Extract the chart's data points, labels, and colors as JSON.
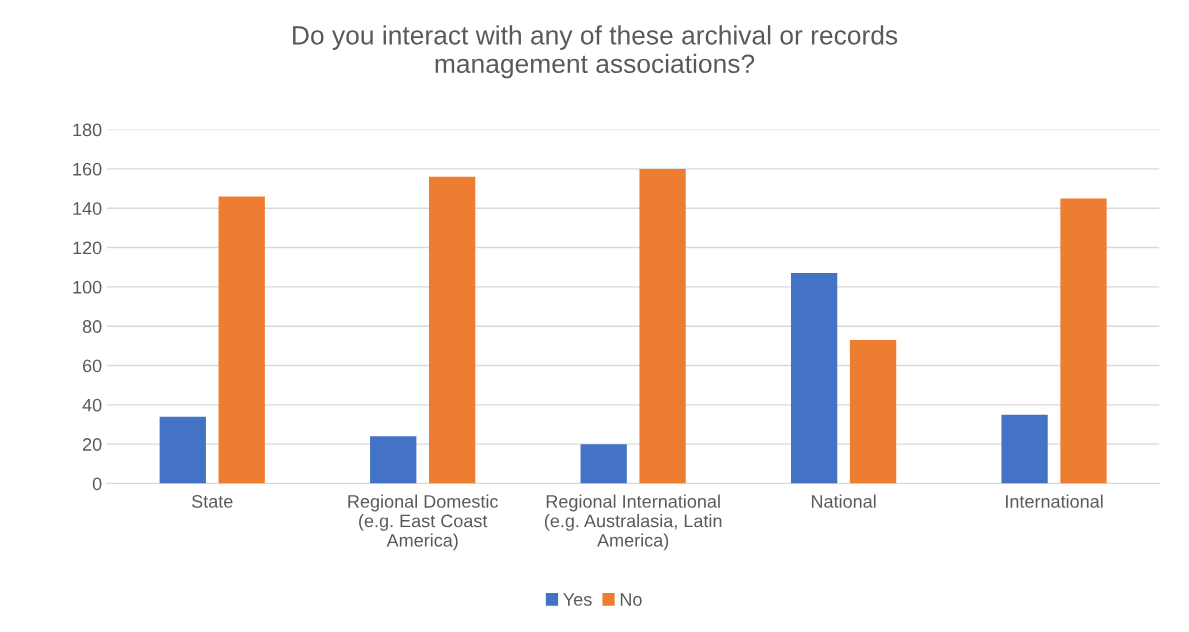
{
  "chart_data": {
    "type": "bar",
    "title": "Do you interact with any of these archival or records\nmanagement associations?",
    "categories": [
      "State",
      "Regional Domestic\n(e.g. East Coast\nAmerica)",
      "Regional International\n(e.g. Australasia, Latin\nAmerica)",
      "National",
      "International"
    ],
    "series": [
      {
        "name": "Yes",
        "color": "#4472c4",
        "values": [
          34,
          24,
          20,
          107,
          35
        ]
      },
      {
        "name": "No",
        "color": "#ed7d31",
        "values": [
          146,
          156,
          160,
          73,
          145
        ]
      }
    ],
    "ylim": [
      0,
      180
    ],
    "yticks": [
      0,
      20,
      40,
      60,
      80,
      100,
      120,
      140,
      160,
      180
    ],
    "grid": "y",
    "legend": "bottom"
  }
}
